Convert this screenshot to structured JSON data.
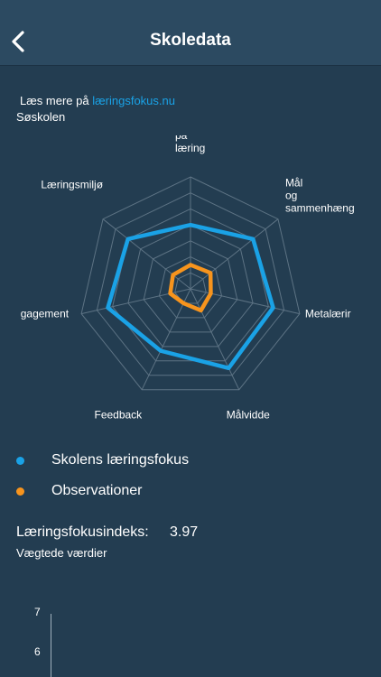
{
  "navbar": {
    "title": "Skoledata",
    "back_icon": "chevron-left-icon"
  },
  "info": {
    "link_prefix": "Læs mere på",
    "link_text": "læringsfokus.nu",
    "school": "Søskolen"
  },
  "chart_data": {
    "type": "radar",
    "axes": [
      "på\nlæring",
      "Mål\nog\nsammenhæng",
      "Metalærir",
      "Målvidde",
      "Feedback",
      "gagement",
      "Læringsmiljø"
    ],
    "rmax": 7,
    "rings": 7,
    "series": [
      {
        "name": "Skolens læringsfokus",
        "color": "#1aa2e6",
        "values": [
          4.0,
          5.0,
          5.3,
          5.5,
          4.3,
          5.3,
          5.0
        ]
      },
      {
        "name": "Observationer",
        "color": "#f7941d",
        "values": [
          1.5,
          1.6,
          1.3,
          1.5,
          1.0,
          1.3,
          1.4
        ]
      }
    ]
  },
  "legend": [
    {
      "label": "Skolens læringsfokus",
      "color": "#1aa2e6"
    },
    {
      "label": "Observationer",
      "color": "#f7941d"
    }
  ],
  "index": {
    "label": "Læringsfokusindeks:",
    "value": "3.97",
    "sub": "Vægtede værdier"
  },
  "bottom_chart": {
    "ticks": [
      "7",
      "6"
    ]
  }
}
